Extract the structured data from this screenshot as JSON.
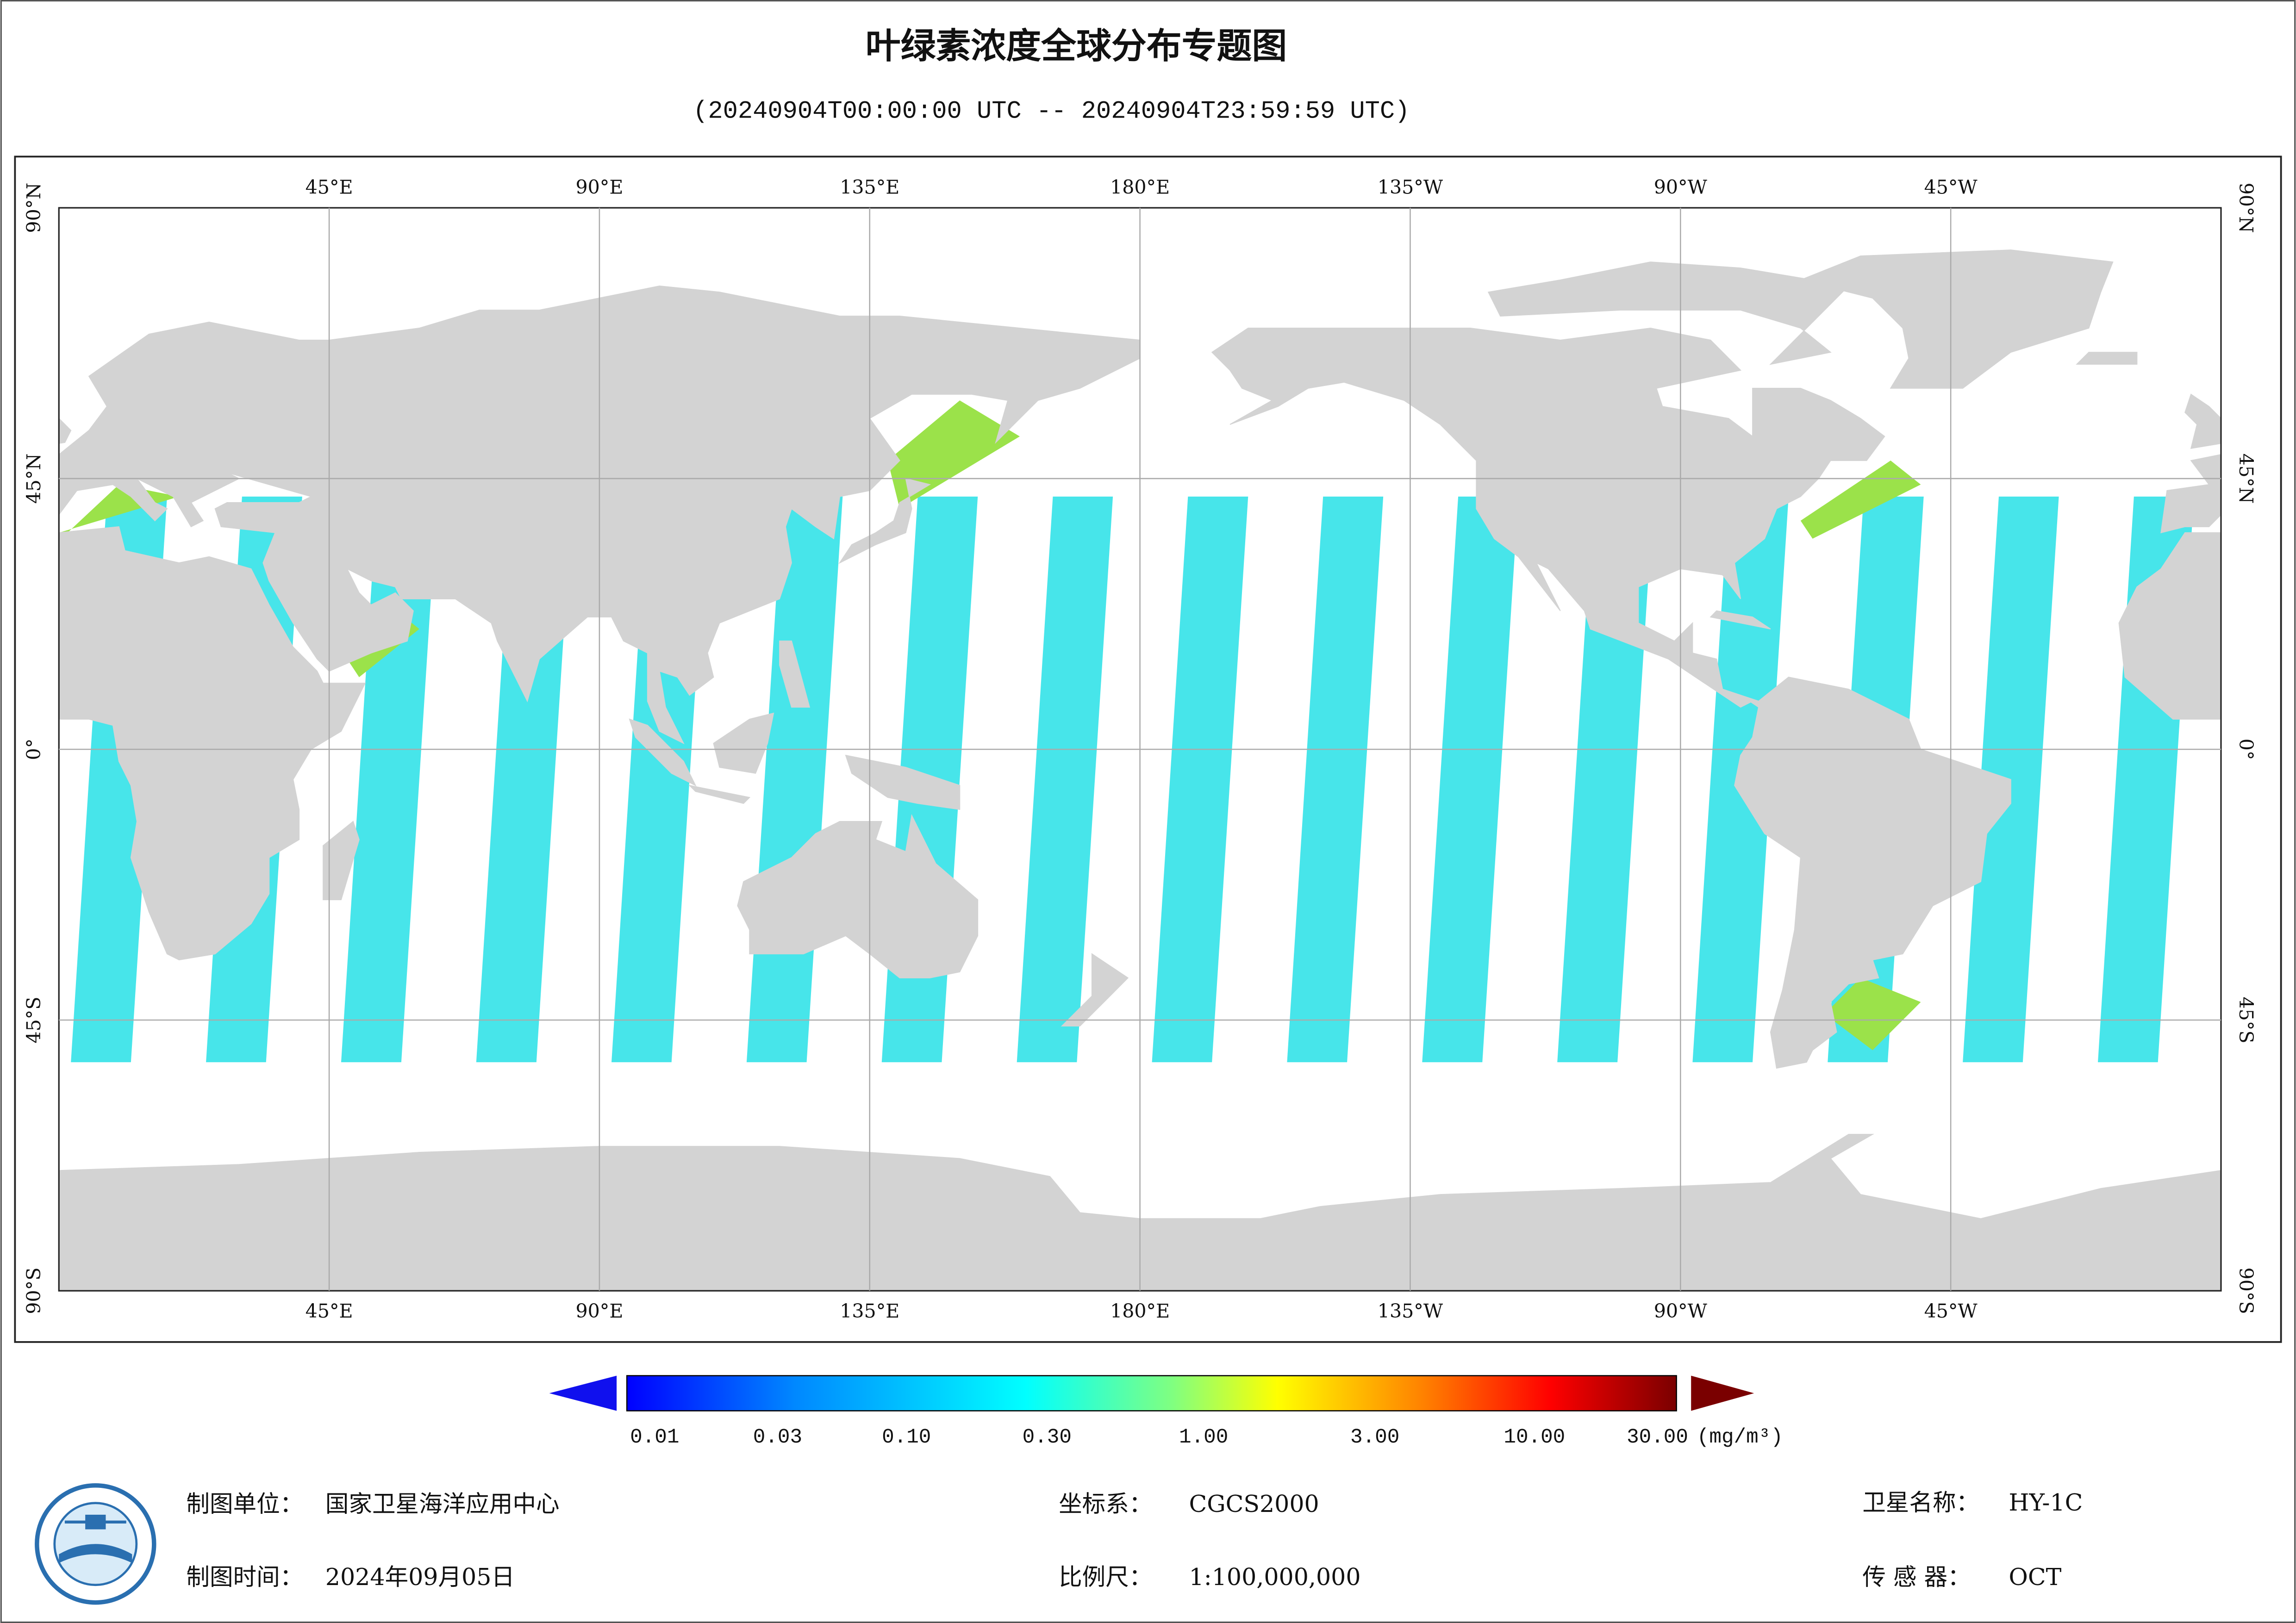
{
  "header": {
    "title": "叶绿素浓度全球分布专题图",
    "subtitle": "(20240904T00:00:00 UTC -- 20240904T23:59:59 UTC)"
  },
  "map": {
    "lon_labels": [
      "45°E",
      "90°E",
      "135°E",
      "180°E",
      "135°W",
      "90°W",
      "45°W"
    ],
    "lat_labels": [
      "90°N",
      "45°N",
      "0°",
      "45°S",
      "90°S"
    ]
  },
  "colorbar": {
    "ticks": [
      "0.01",
      "0.03",
      "0.10",
      "0.30",
      "1.00",
      "3.00",
      "10.00",
      "30.00"
    ],
    "unit": "(mg/m³)"
  },
  "footer": {
    "items": [
      {
        "label": "制图单位：",
        "value": "国家卫星海洋应用中心"
      },
      {
        "label": "制图时间：",
        "value": "2024年09月05日"
      },
      {
        "label": "坐标系：",
        "value": "CGCS2000"
      },
      {
        "label": "比例尺：",
        "value": "1:100,000,000"
      },
      {
        "label": "卫星名称：",
        "value": "HY-1C"
      },
      {
        "label": "传 感 器：",
        "value": "OCT"
      }
    ]
  }
}
